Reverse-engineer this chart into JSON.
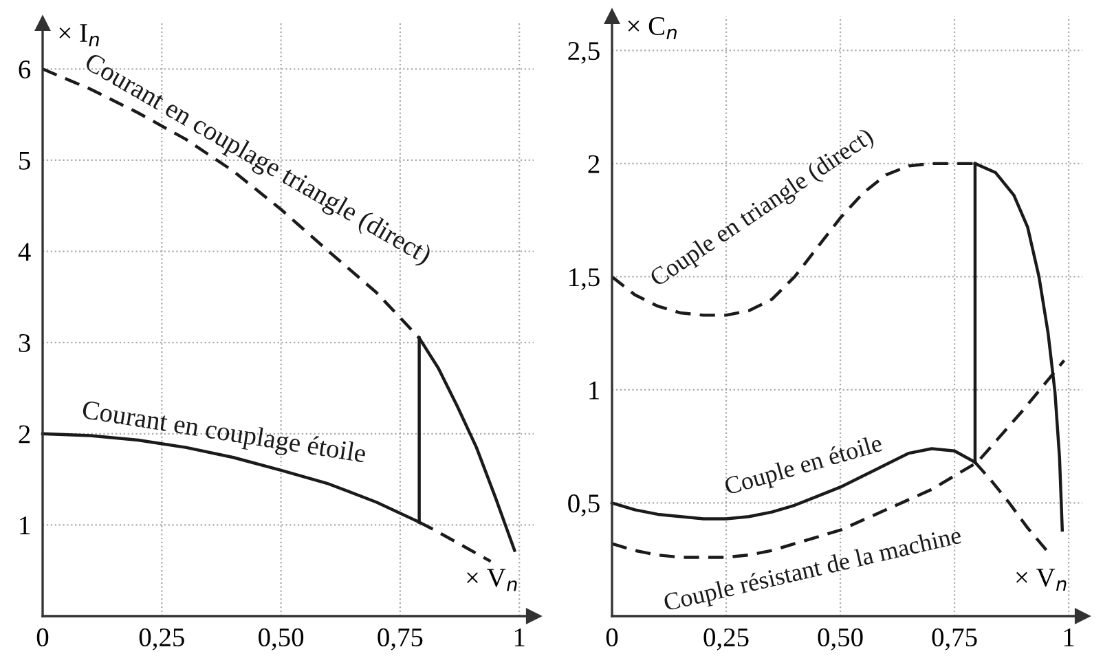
{
  "chart_data": [
    {
      "type": "line",
      "xlabel": "× V$_{n}$",
      "ylabel": "× I$_{n}$",
      "xlim": [
        0,
        1.03
      ],
      "ylim": [
        0,
        6.5
      ],
      "xticks": [
        {
          "value": 0,
          "label": "0"
        },
        {
          "value": 0.25,
          "label": "0,25"
        },
        {
          "value": 0.5,
          "label": "0,50"
        },
        {
          "value": 0.75,
          "label": "0,75"
        },
        {
          "value": 1,
          "label": "1"
        }
      ],
      "yticks": [
        1,
        2,
        3,
        4,
        5,
        6
      ],
      "grid": true,
      "legend": false,
      "series": [
        {
          "name": "Courant en couplage triangle (direct)",
          "color": "#1a1a1a",
          "line_style": "dashed",
          "x": [
            0,
            0.1,
            0.2,
            0.3,
            0.4,
            0.5,
            0.6,
            0.7,
            0.79
          ],
          "values": [
            6,
            5.78,
            5.52,
            5.23,
            4.88,
            4.46,
            4.0,
            3.55,
            3.05
          ]
        },
        {
          "color": "#1a1a1a",
          "line_style": "solid",
          "x": [
            0.79,
            0.83,
            0.87,
            0.91,
            0.95,
            0.99
          ],
          "values": [
            3.05,
            2.72,
            2.3,
            1.85,
            1.3,
            0.72
          ]
        },
        {
          "name": "Courant en couplage étoile",
          "color": "#1a1a1a",
          "line_style": "solid",
          "x": [
            0,
            0.1,
            0.2,
            0.3,
            0.4,
            0.5,
            0.6,
            0.7,
            0.79
          ],
          "values": [
            2,
            1.98,
            1.93,
            1.85,
            1.74,
            1.6,
            1.45,
            1.25,
            1.03
          ]
        },
        {
          "color": "#1a1a1a",
          "line_style": "dashed",
          "x": [
            0.79,
            0.82,
            0.94
          ],
          "values": [
            1.03,
            0.95,
            0.6
          ]
        },
        {
          "color": "#1a1a1a",
          "line_style": "solid",
          "x": [
            0.79,
            0.79
          ],
          "values": [
            1.03,
            3.05
          ]
        }
      ]
    },
    {
      "type": "line",
      "xlabel": "× V$_{n}$",
      "ylabel": "× C$_{n}$",
      "xlim": [
        0,
        1.03
      ],
      "ylim": [
        0,
        2.65
      ],
      "xticks": [
        {
          "value": 0,
          "label": "0"
        },
        {
          "value": 0.25,
          "label": "0,25"
        },
        {
          "value": 0.5,
          "label": "0,50"
        },
        {
          "value": 0.75,
          "label": "0,75"
        },
        {
          "value": 1,
          "label": "1"
        }
      ],
      "yticks": [
        {
          "value": 0.5,
          "label": "0,5"
        },
        1,
        {
          "value": 1.5,
          "label": "1,5"
        },
        2,
        {
          "value": 2.5,
          "label": "2,5"
        }
      ],
      "grid": true,
      "legend": false,
      "series": [
        {
          "name": "Couple en triangle (direct)",
          "color": "#1a1a1a",
          "line_style": "dashed",
          "x": [
            0,
            0.05,
            0.1,
            0.15,
            0.2,
            0.25,
            0.3,
            0.35,
            0.4,
            0.45,
            0.5,
            0.55,
            0.6,
            0.65,
            0.7,
            0.795
          ],
          "values": [
            1.5,
            1.42,
            1.37,
            1.34,
            1.33,
            1.33,
            1.35,
            1.4,
            1.5,
            1.63,
            1.76,
            1.87,
            1.95,
            1.99,
            2.0,
            2.0
          ]
        },
        {
          "color": "#1a1a1a",
          "line_style": "solid",
          "x": [
            0.795,
            0.84,
            0.88,
            0.91,
            0.935,
            0.955,
            0.97,
            0.98,
            0.986
          ],
          "values": [
            2.0,
            1.96,
            1.86,
            1.72,
            1.5,
            1.25,
            0.99,
            0.7,
            0.38
          ]
        },
        {
          "name": "Couple en étoile",
          "color": "#1a1a1a",
          "line_style": "solid",
          "x": [
            0,
            0.05,
            0.1,
            0.15,
            0.2,
            0.25,
            0.3,
            0.35,
            0.4,
            0.45,
            0.5,
            0.55,
            0.6,
            0.65,
            0.7,
            0.75,
            0.795
          ],
          "values": [
            0.5,
            0.47,
            0.45,
            0.44,
            0.43,
            0.43,
            0.44,
            0.46,
            0.49,
            0.53,
            0.57,
            0.62,
            0.67,
            0.72,
            0.74,
            0.73,
            0.68
          ]
        },
        {
          "color": "#1a1a1a",
          "line_style": "dashed",
          "x": [
            0.795,
            0.83,
            0.87,
            0.91,
            0.952
          ],
          "values": [
            0.68,
            0.6,
            0.5,
            0.39,
            0.29
          ]
        },
        {
          "name": "Couple résistant de la machine",
          "color": "#1a1a1a",
          "line_style": "dashed",
          "x": [
            0,
            0.05,
            0.1,
            0.15,
            0.2,
            0.25,
            0.3,
            0.35,
            0.4,
            0.45,
            0.5,
            0.6,
            0.7,
            0.8,
            0.9,
            0.99
          ],
          "values": [
            0.32,
            0.29,
            0.27,
            0.26,
            0.26,
            0.26,
            0.27,
            0.29,
            0.32,
            0.35,
            0.38,
            0.47,
            0.56,
            0.68,
            0.91,
            1.13
          ]
        },
        {
          "color": "#1a1a1a",
          "line_style": "solid",
          "x": [
            0.795,
            0.795
          ],
          "values": [
            0.68,
            2.0
          ]
        }
      ]
    }
  ]
}
